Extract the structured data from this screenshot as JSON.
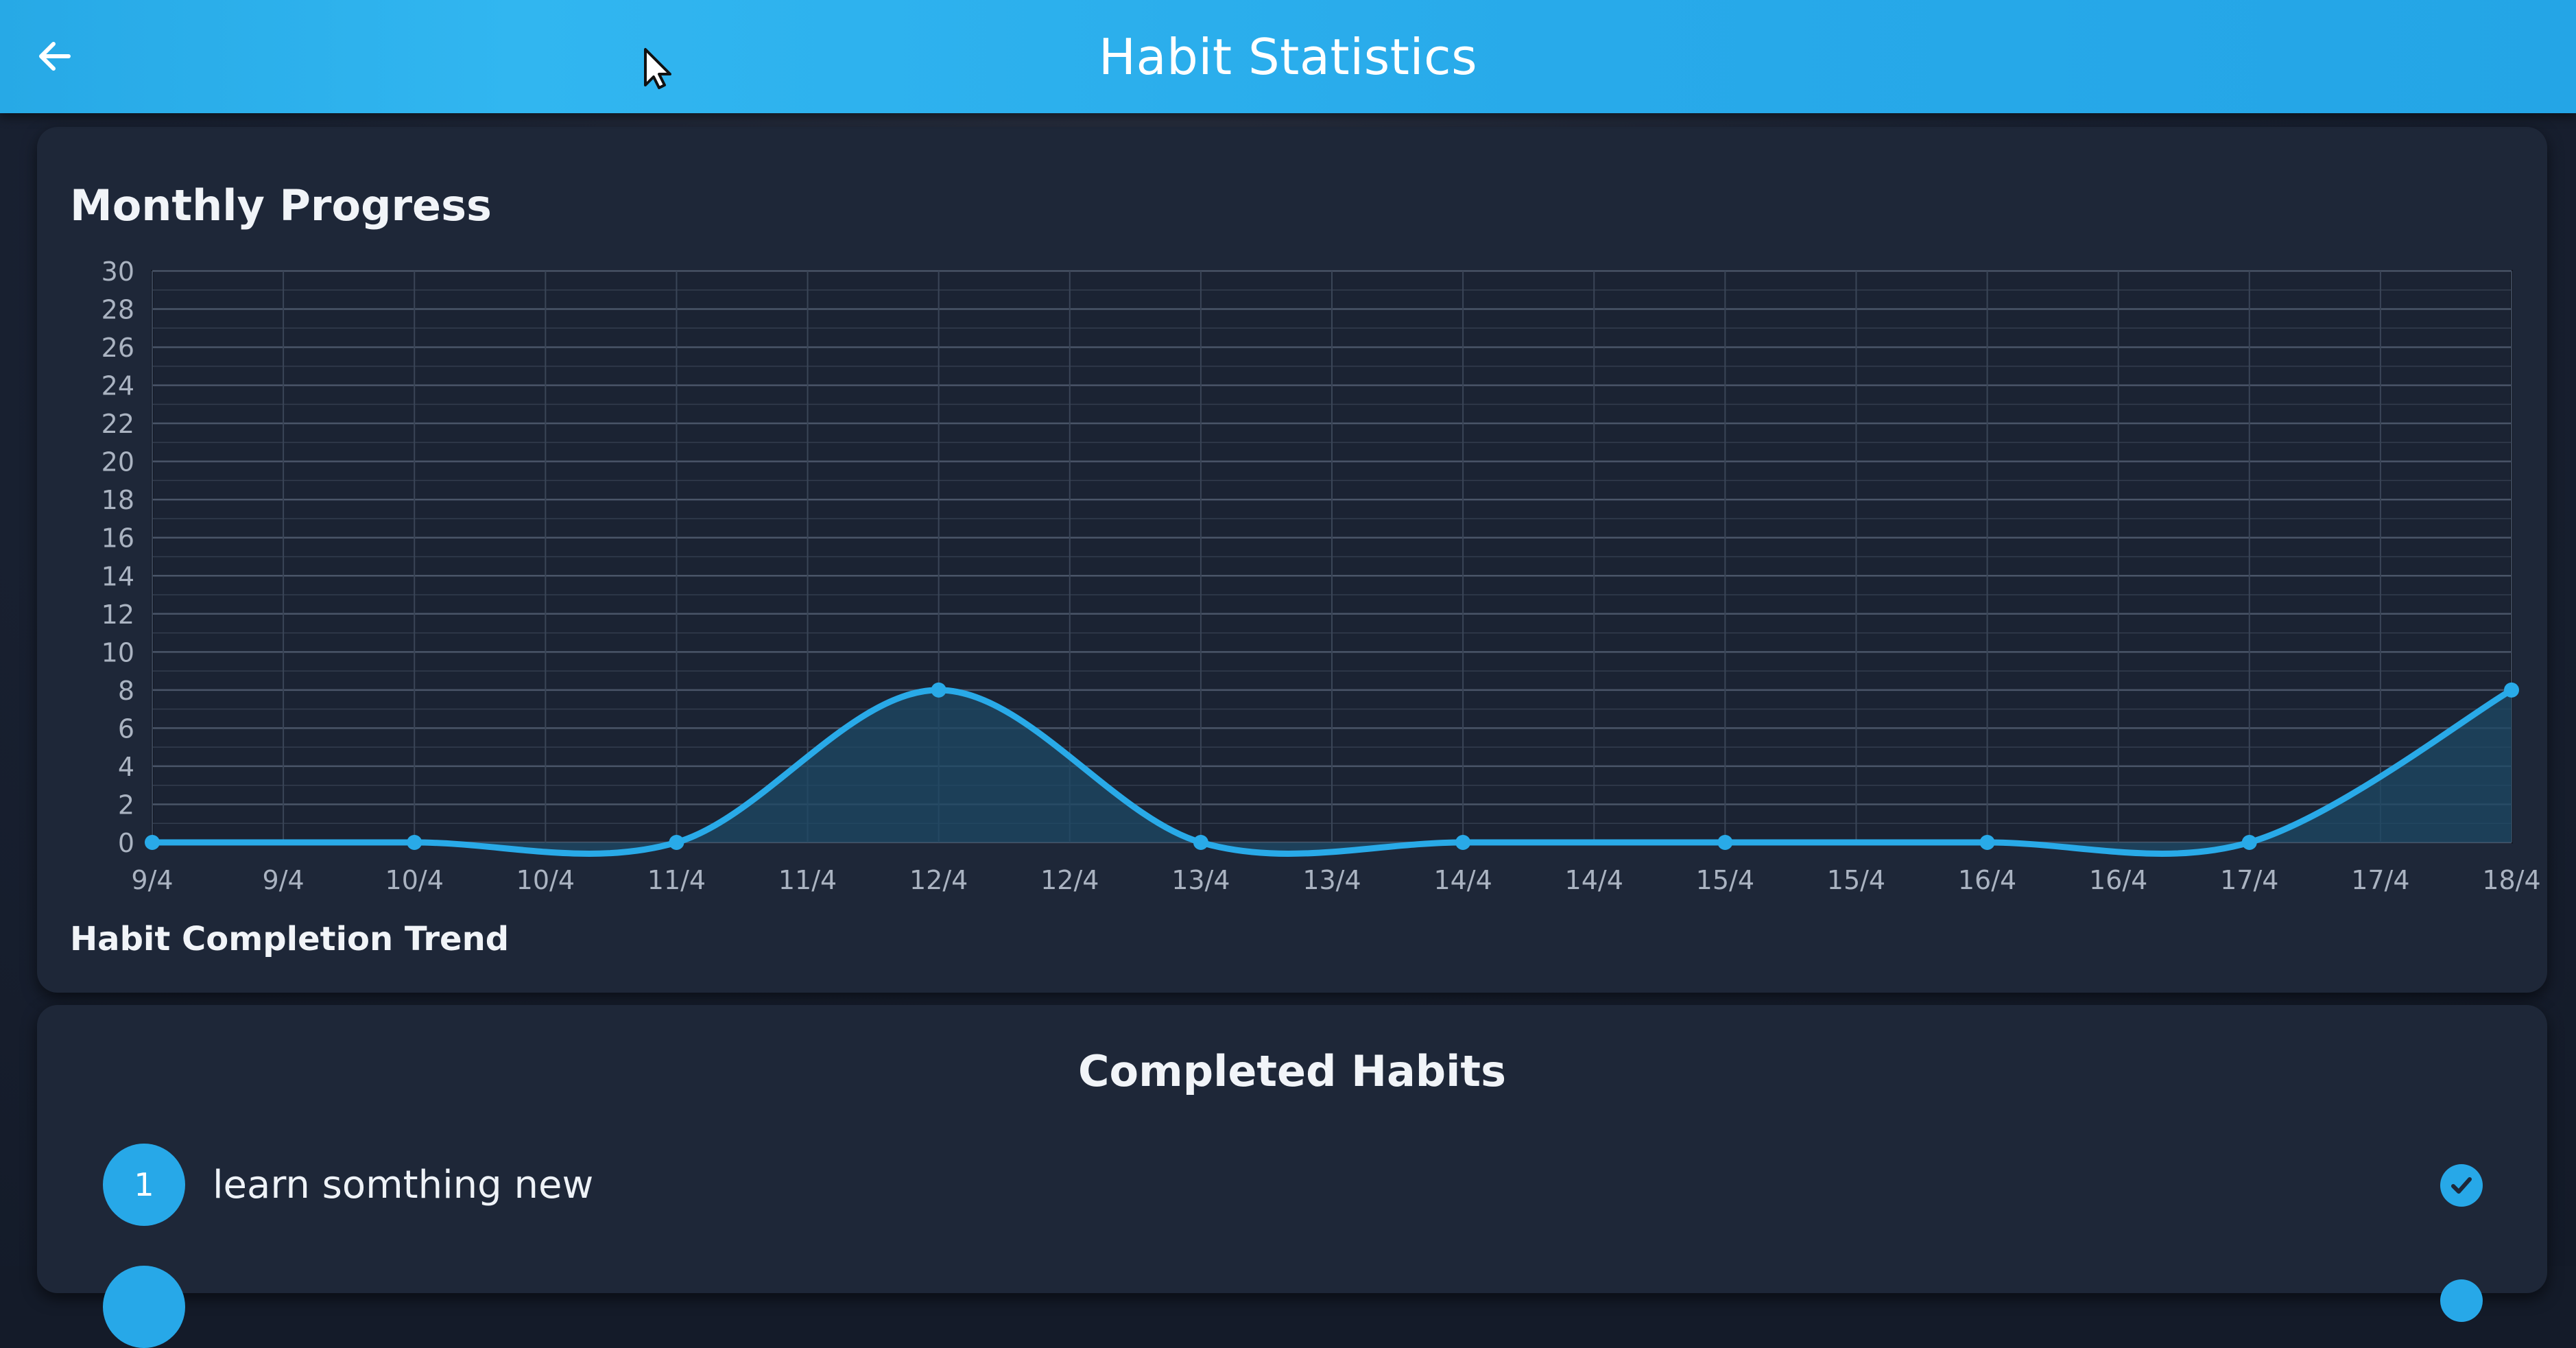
{
  "appbar": {
    "title": "Habit Statistics",
    "back_icon": "arrow-left-icon"
  },
  "progress_card": {
    "title": "Monthly Progress",
    "caption": "Habit Completion Trend"
  },
  "chart_data": {
    "type": "line",
    "title": "",
    "xlabel": "",
    "ylabel": "",
    "x": [
      "9/4",
      "10/4",
      "11/4",
      "12/4",
      "13/4",
      "14/4",
      "15/4",
      "16/4",
      "17/4",
      "18/4"
    ],
    "x_tick_labels": [
      "9/4",
      "9/4",
      "10/4",
      "10/4",
      "11/4",
      "11/4",
      "12/4",
      "12/4",
      "13/4",
      "13/4",
      "14/4",
      "14/4",
      "15/4",
      "15/4",
      "16/4",
      "16/4",
      "17/4",
      "17/4",
      "18/4"
    ],
    "series": [
      {
        "values": [
          0,
          0,
          0,
          8,
          0,
          0,
          0,
          0,
          0,
          8
        ]
      }
    ],
    "ylim": [
      0,
      30
    ],
    "y_ticks": [
      0,
      2,
      4,
      6,
      8,
      10,
      12,
      14,
      16,
      18,
      20,
      22,
      24,
      26,
      28,
      30
    ],
    "grid": true,
    "area_fill": true,
    "line_color": "#29aae8",
    "fill_color": "#1e4a66"
  },
  "habits_card": {
    "title": "Completed Habits",
    "items": [
      {
        "number": "1",
        "name": "learn somthing new",
        "check_icon": "check-circle-icon"
      }
    ]
  },
  "colors": {
    "accent": "#29aae8",
    "card_bg": "#1e2738",
    "page_bg": "#141b29"
  }
}
